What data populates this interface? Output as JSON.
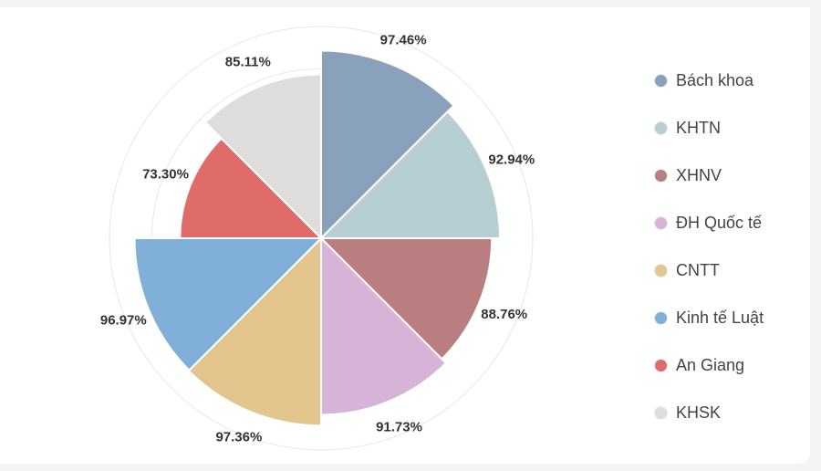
{
  "chart_data": {
    "type": "polar-area",
    "categories": [
      "Bách khoa",
      "KHTN",
      "XHNV",
      "ĐH Quốc tế",
      "CNTT",
      "Kinh tế Luật",
      "An Giang",
      "KHSK"
    ],
    "values": [
      97.46,
      92.94,
      88.76,
      91.73,
      97.36,
      96.97,
      73.3,
      85.11
    ],
    "labels": [
      "97.46%",
      "92.94%",
      "88.76%",
      "91.73%",
      "97.36%",
      "96.97%",
      "73.30%",
      "85.11%"
    ],
    "colors": [
      "#8aa1bc",
      "#b7cfd2",
      "#b97f80",
      "#d6b4d8",
      "#e2c68e",
      "#80b0d8",
      "#e06c69",
      "#dddddd"
    ],
    "rmax": 110,
    "grid": true,
    "legend_position": "right"
  }
}
